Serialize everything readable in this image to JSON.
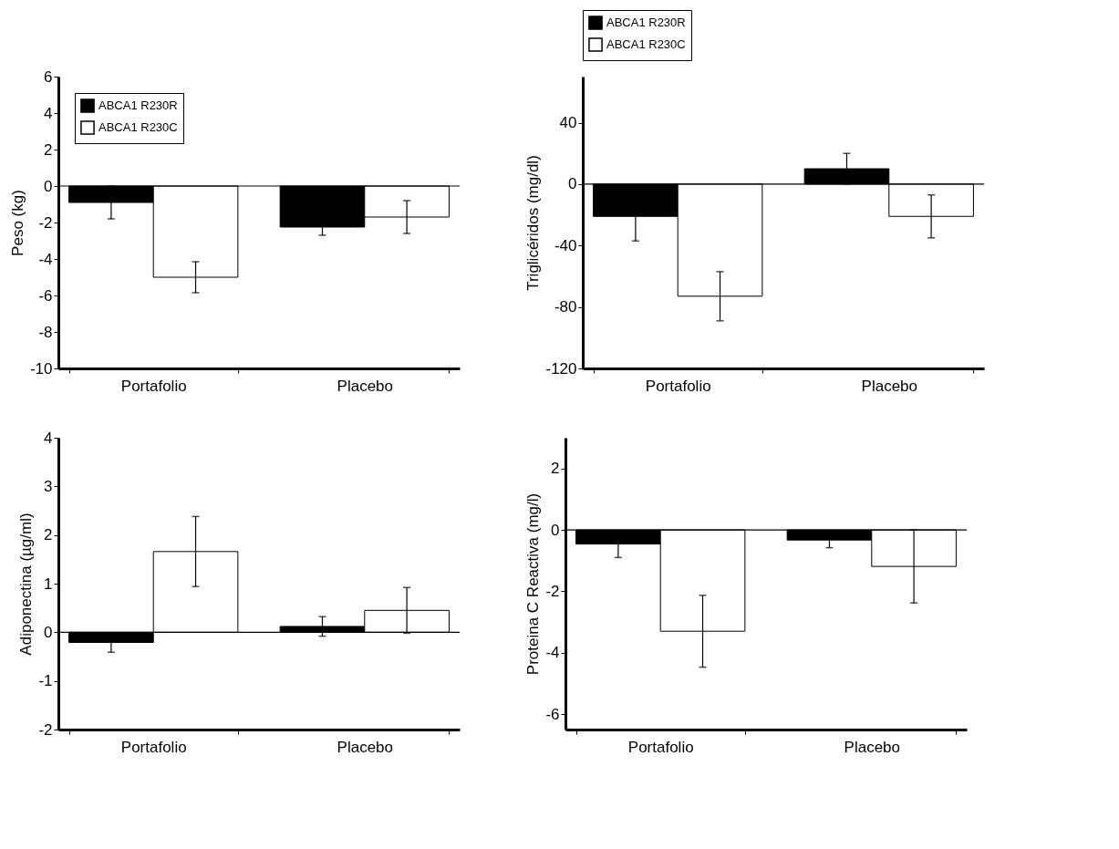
{
  "chart_data": [
    {
      "type": "bar",
      "ylabel": "Peso (kg)",
      "categories": [
        "Portafolio",
        "Placebo"
      ],
      "ylim": [
        -10,
        6
      ],
      "yticks": [
        -10,
        -8,
        -6,
        -4,
        -2,
        0,
        2,
        4,
        6
      ],
      "legend": "top left",
      "grid": false,
      "ref_lines": [
        {
          "axis": "y",
          "value": 0
        }
      ],
      "series": [
        {
          "name": "ABCA1 R230R",
          "color": "#000000",
          "values": [
            -0.9,
            -2.25
          ],
          "errors": [
            0.9,
            0.45
          ]
        },
        {
          "name": "ABCA1 R230C",
          "color": "#ffffff",
          "values": [
            -5.0,
            -1.7
          ],
          "errors": [
            0.85,
            0.9
          ]
        }
      ]
    },
    {
      "type": "bar",
      "ylabel": "Triglicéridos (mg/dl)",
      "categories": [
        "Portafolio",
        "Placebo"
      ],
      "ylim": [
        -120,
        70
      ],
      "yticks": [
        -120,
        -80,
        -40,
        0,
        40
      ],
      "legend": "top",
      "grid": false,
      "ref_lines": [
        {
          "axis": "y",
          "value": 0
        }
      ],
      "series": [
        {
          "name": "ABCA1 R230R",
          "color": "#000000",
          "values": [
            -21,
            10
          ],
          "errors": [
            16,
            10
          ]
        },
        {
          "name": "ABCA1 R230C",
          "color": "#ffffff",
          "values": [
            -73,
            -21
          ],
          "errors": [
            16,
            14
          ]
        }
      ]
    },
    {
      "type": "bar",
      "ylabel": "Adiponectina  (µg/ml)",
      "categories": [
        "Portafolio",
        "Placebo"
      ],
      "ylim": [
        -2,
        4
      ],
      "yticks": [
        -2,
        -1,
        0,
        1,
        2,
        3,
        4
      ],
      "legend": "top left",
      "grid": false,
      "ref_lines": [
        {
          "axis": "y",
          "value": 0
        }
      ],
      "series": [
        {
          "name": "ABCA1 R230R",
          "color": "#000000",
          "values": [
            -0.21,
            0.12
          ],
          "errors": [
            0.2,
            0.2
          ]
        },
        {
          "name": "ABCA1 R230C",
          "color": "#ffffff",
          "values": [
            1.66,
            0.45
          ],
          "errors": [
            0.72,
            0.47
          ]
        }
      ]
    },
    {
      "type": "bar",
      "ylabel": "Proteina C Reactiva  (mg/l)",
      "categories": [
        "Portafolio",
        "Placebo"
      ],
      "ylim": [
        -6.5,
        3
      ],
      "yticks": [
        -6,
        -4,
        -2,
        0,
        2
      ],
      "legend": "top left",
      "grid": false,
      "ref_lines": [
        {
          "axis": "y",
          "value": 0
        }
      ],
      "series": [
        {
          "name": "ABCA1 R230R",
          "color": "#000000",
          "values": [
            -0.46,
            -0.33
          ],
          "errors": [
            0.44,
            0.25
          ]
        },
        {
          "name": "ABCA1 R230C",
          "color": "#ffffff",
          "values": [
            -3.3,
            -1.19
          ],
          "errors": [
            1.17,
            1.19
          ]
        }
      ]
    }
  ]
}
